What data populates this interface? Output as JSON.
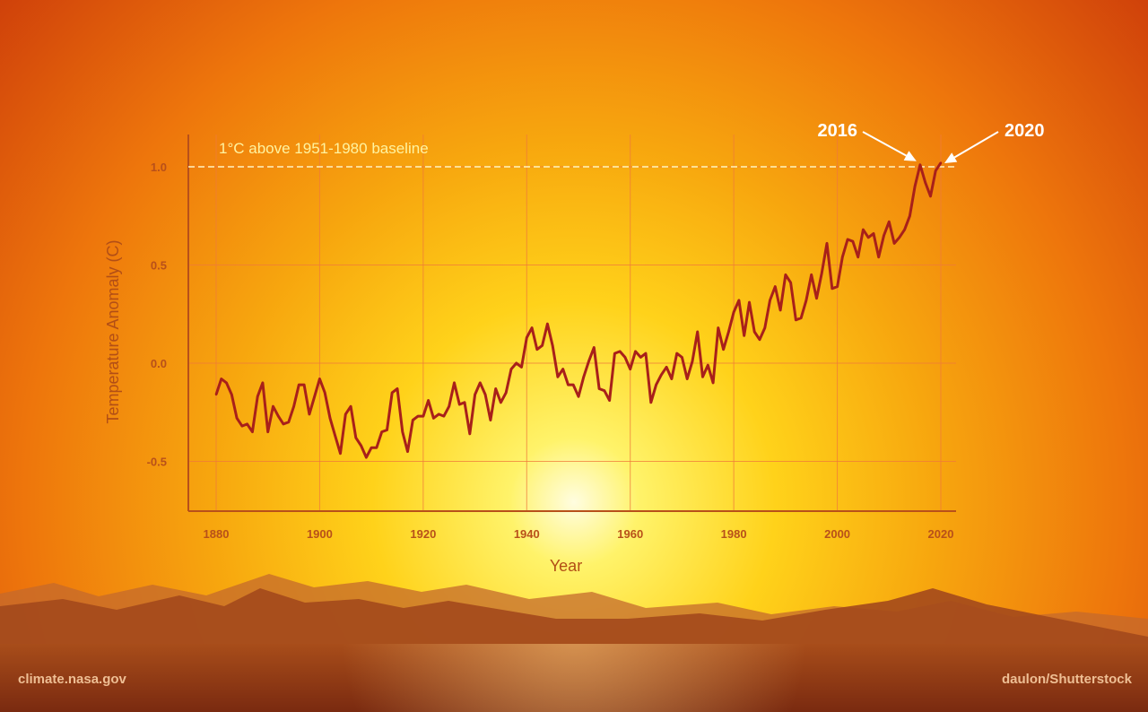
{
  "chart_data": {
    "type": "line",
    "xlabel": "Year",
    "ylabel": "Temperature Anomaly (C)",
    "xlim": [
      1875,
      2023
    ],
    "ylim": [
      -0.75,
      1.17
    ],
    "x_ticks": [
      1880,
      1900,
      1920,
      1940,
      1960,
      1980,
      2000,
      2020
    ],
    "x_tick_labels": [
      "1880",
      "1900",
      "1920",
      "1940",
      "1960",
      "1980",
      "2000",
      "2020"
    ],
    "y_ticks": [
      -0.5,
      0.0,
      0.5,
      1.0
    ],
    "y_tick_labels": [
      "-0.5",
      "0.0",
      "0.5",
      "1.0"
    ],
    "grid": true,
    "colors": {
      "line": "#a8201a",
      "grid": "#f07a3a",
      "axis": "#b8501a",
      "baseline": "#fff3c0"
    },
    "reference_line": {
      "y": 1.0,
      "label": "1°C above 1951-1980 baseline",
      "style": "dashed"
    },
    "annotations": [
      {
        "text": "2016",
        "x": 2016,
        "y": 1.01
      },
      {
        "text": "2020",
        "x": 2020,
        "y": 1.0
      }
    ],
    "x": [
      1880,
      1881,
      1882,
      1883,
      1884,
      1885,
      1886,
      1887,
      1888,
      1889,
      1890,
      1891,
      1892,
      1893,
      1894,
      1895,
      1896,
      1897,
      1898,
      1899,
      1900,
      1901,
      1902,
      1903,
      1904,
      1905,
      1906,
      1907,
      1908,
      1909,
      1910,
      1911,
      1912,
      1913,
      1914,
      1915,
      1916,
      1917,
      1918,
      1919,
      1920,
      1921,
      1922,
      1923,
      1924,
      1925,
      1926,
      1927,
      1928,
      1929,
      1930,
      1931,
      1932,
      1933,
      1934,
      1935,
      1936,
      1937,
      1938,
      1939,
      1940,
      1941,
      1942,
      1943,
      1944,
      1945,
      1946,
      1947,
      1948,
      1949,
      1950,
      1951,
      1952,
      1953,
      1954,
      1955,
      1956,
      1957,
      1958,
      1959,
      1960,
      1961,
      1962,
      1963,
      1964,
      1965,
      1966,
      1967,
      1968,
      1969,
      1970,
      1971,
      1972,
      1973,
      1974,
      1975,
      1976,
      1977,
      1978,
      1979,
      1980,
      1981,
      1982,
      1983,
      1984,
      1985,
      1986,
      1987,
      1988,
      1989,
      1990,
      1991,
      1992,
      1993,
      1994,
      1995,
      1996,
      1997,
      1998,
      1999,
      2000,
      2001,
      2002,
      2003,
      2004,
      2005,
      2006,
      2007,
      2008,
      2009,
      2010,
      2011,
      2012,
      2013,
      2014,
      2015,
      2016,
      2017,
      2018,
      2019,
      2020
    ],
    "series": [
      {
        "values": [
          -0.16,
          -0.08,
          -0.1,
          -0.16,
          -0.28,
          -0.32,
          -0.31,
          -0.35,
          -0.17,
          -0.1,
          -0.35,
          -0.22,
          -0.27,
          -0.31,
          -0.3,
          -0.22,
          -0.11,
          -0.11,
          -0.26,
          -0.17,
          -0.08,
          -0.15,
          -0.28,
          -0.37,
          -0.46,
          -0.26,
          -0.22,
          -0.38,
          -0.42,
          -0.48,
          -0.43,
          -0.43,
          -0.35,
          -0.34,
          -0.15,
          -0.13,
          -0.35,
          -0.45,
          -0.29,
          -0.27,
          -0.27,
          -0.19,
          -0.28,
          -0.26,
          -0.27,
          -0.22,
          -0.1,
          -0.21,
          -0.2,
          -0.36,
          -0.16,
          -0.1,
          -0.16,
          -0.29,
          -0.13,
          -0.2,
          -0.15,
          -0.03,
          0.0,
          -0.02,
          0.13,
          0.18,
          0.07,
          0.09,
          0.2,
          0.09,
          -0.07,
          -0.03,
          -0.11,
          -0.11,
          -0.17,
          -0.07,
          0.01,
          0.08,
          -0.13,
          -0.14,
          -0.19,
          0.05,
          0.06,
          0.03,
          -0.03,
          0.06,
          0.03,
          0.05,
          -0.2,
          -0.11,
          -0.06,
          -0.02,
          -0.08,
          0.05,
          0.03,
          -0.08,
          0.01,
          0.16,
          -0.07,
          -0.01,
          -0.1,
          0.18,
          0.07,
          0.16,
          0.26,
          0.32,
          0.14,
          0.31,
          0.16,
          0.12,
          0.18,
          0.32,
          0.39,
          0.27,
          0.45,
          0.41,
          0.22,
          0.23,
          0.32,
          0.45,
          0.33,
          0.46,
          0.61,
          0.38,
          0.39,
          0.54,
          0.63,
          0.62,
          0.54,
          0.68,
          0.64,
          0.66,
          0.54,
          0.65,
          0.72,
          0.61,
          0.64,
          0.68,
          0.75,
          0.9,
          1.01,
          0.92,
          0.85,
          0.98,
          1.02
        ]
      }
    ]
  },
  "credits": {
    "left": "climate.nasa.gov",
    "right": "daulon/Shutterstock"
  }
}
